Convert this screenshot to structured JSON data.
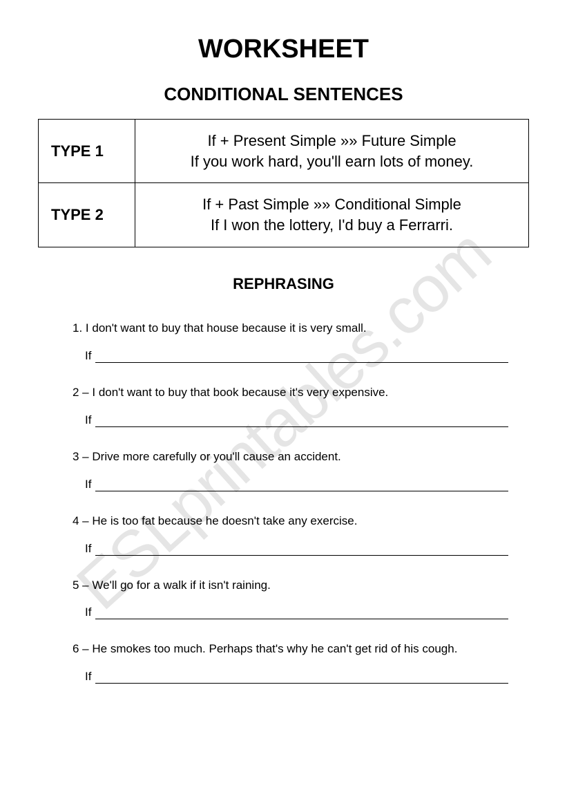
{
  "title": "WORKSHEET",
  "subtitle": "CONDITIONAL SENTENCES",
  "watermark": "ESLprintables.com",
  "types": [
    {
      "label": "TYPE 1",
      "rule": "If + Present Simple »» Future Simple",
      "example": "If you work hard, you'll earn lots of money."
    },
    {
      "label": "TYPE 2",
      "rule": "If + Past Simple »» Conditional Simple",
      "example": "If I won the lottery, I'd buy a Ferrarri."
    }
  ],
  "section_heading": "REPHRASING",
  "answer_prefix": "If",
  "exercises": [
    {
      "num": "1.",
      "text": "I don't want to buy that house because it is very small."
    },
    {
      "num": "2 –",
      "text": "I don't want to buy that book because it's very expensive."
    },
    {
      "num": "3 –",
      "text": "Drive more carefully or you'll cause an accident."
    },
    {
      "num": "4 –",
      "text": "He is too fat because he doesn't take any exercise."
    },
    {
      "num": "5 –",
      "text": "We'll go for a walk if it isn't raining."
    },
    {
      "num": "6 –",
      "text": "He smokes too much. Perhaps that's why he can't get rid of his cough."
    }
  ],
  "colors": {
    "text": "#000000",
    "background": "#ffffff",
    "border": "#000000",
    "watermark": "rgba(0,0,0,0.10)"
  }
}
